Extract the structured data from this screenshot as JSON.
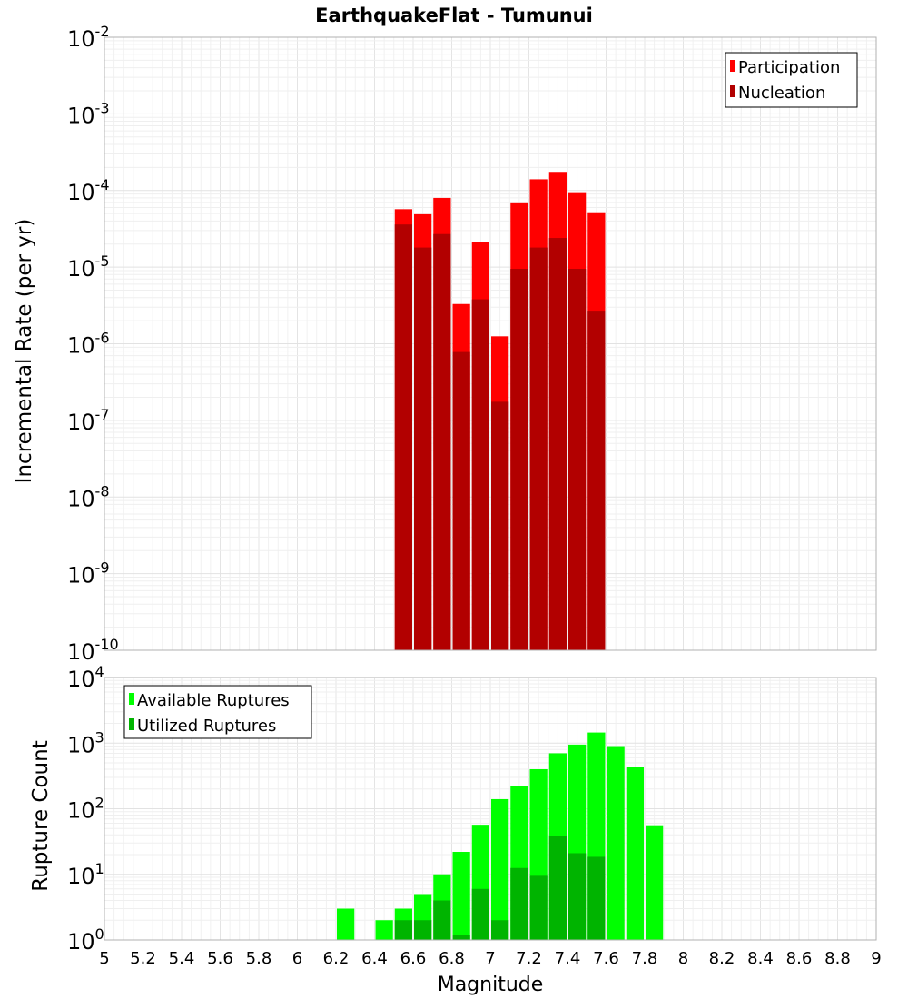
{
  "chart_data": [
    {
      "type": "bar",
      "title": "EarthquakeFlat - Tumunui",
      "ylabel": "Incremental Rate (per yr)",
      "xlabel": "",
      "x_range": [
        5,
        9
      ],
      "y_scale": "log",
      "y_range": [
        1e-10,
        0.01
      ],
      "y_ticks": [
        {
          "base": "10",
          "exp": "-10"
        },
        {
          "base": "10",
          "exp": "-9"
        },
        {
          "base": "10",
          "exp": "-8"
        },
        {
          "base": "10",
          "exp": "-7"
        },
        {
          "base": "10",
          "exp": "-6"
        },
        {
          "base": "10",
          "exp": "-5"
        },
        {
          "base": "10",
          "exp": "-4"
        },
        {
          "base": "10",
          "exp": "-3"
        },
        {
          "base": "10",
          "exp": "-2"
        }
      ],
      "grid": true,
      "legend_position": "top-right",
      "bar_width": 0.1,
      "series": [
        {
          "name": "Participation",
          "color": "#ff0000",
          "x": [
            6.55,
            6.65,
            6.75,
            6.85,
            6.95,
            7.05,
            7.15,
            7.25,
            7.35,
            7.45,
            7.55
          ],
          "values": [
            5.7e-05,
            4.9e-05,
            8e-05,
            3.3e-06,
            2.1e-05,
            1.25e-06,
            7e-05,
            0.00014,
            0.000175,
            9.5e-05,
            5.2e-05
          ]
        },
        {
          "name": "Nucleation",
          "color": "#b20000",
          "x": [
            6.55,
            6.65,
            6.75,
            6.85,
            6.95,
            7.05,
            7.15,
            7.25,
            7.35,
            7.45,
            7.55
          ],
          "values": [
            3.6e-05,
            1.8e-05,
            2.7e-05,
            7.8e-07,
            3.8e-06,
            1.75e-07,
            9.5e-06,
            1.8e-05,
            2.4e-05,
            9.5e-06,
            2.7e-06
          ]
        }
      ]
    },
    {
      "type": "bar",
      "title": "",
      "ylabel": "Rupture Count",
      "xlabel": "Magnitude",
      "x_range": [
        5,
        9
      ],
      "x_ticks": [
        "5",
        "5.2",
        "5.4",
        "5.6",
        "5.8",
        "6",
        "6.2",
        "6.4",
        "6.6",
        "6.8",
        "7",
        "7.2",
        "7.4",
        "7.6",
        "7.8",
        "8",
        "8.2",
        "8.4",
        "8.6",
        "8.8",
        "9"
      ],
      "y_scale": "log",
      "y_range": [
        1,
        10000
      ],
      "y_ticks": [
        {
          "base": "10",
          "exp": "0"
        },
        {
          "base": "10",
          "exp": "1"
        },
        {
          "base": "10",
          "exp": "2"
        },
        {
          "base": "10",
          "exp": "3"
        },
        {
          "base": "10",
          "exp": "4"
        }
      ],
      "grid": true,
      "legend_position": "top-left",
      "bar_width": 0.1,
      "series": [
        {
          "name": "Available Ruptures",
          "color": "#00ff00",
          "x": [
            6.25,
            6.45,
            6.55,
            6.65,
            6.75,
            6.85,
            6.95,
            7.05,
            7.15,
            7.25,
            7.35,
            7.45,
            7.55,
            7.65,
            7.75,
            7.85
          ],
          "values": [
            3,
            2,
            3,
            5,
            10,
            22,
            57,
            140,
            220,
            400,
            700,
            950,
            1450,
            900,
            440,
            56
          ]
        },
        {
          "name": "Utilized Ruptures",
          "color": "#00b400",
          "x": [
            6.55,
            6.65,
            6.75,
            6.85,
            6.95,
            7.05,
            7.15,
            7.25,
            7.35,
            7.45,
            7.55
          ],
          "values": [
            2,
            2,
            4,
            1.2,
            6,
            2,
            12.5,
            9.5,
            38,
            21,
            18.5
          ]
        }
      ]
    }
  ]
}
